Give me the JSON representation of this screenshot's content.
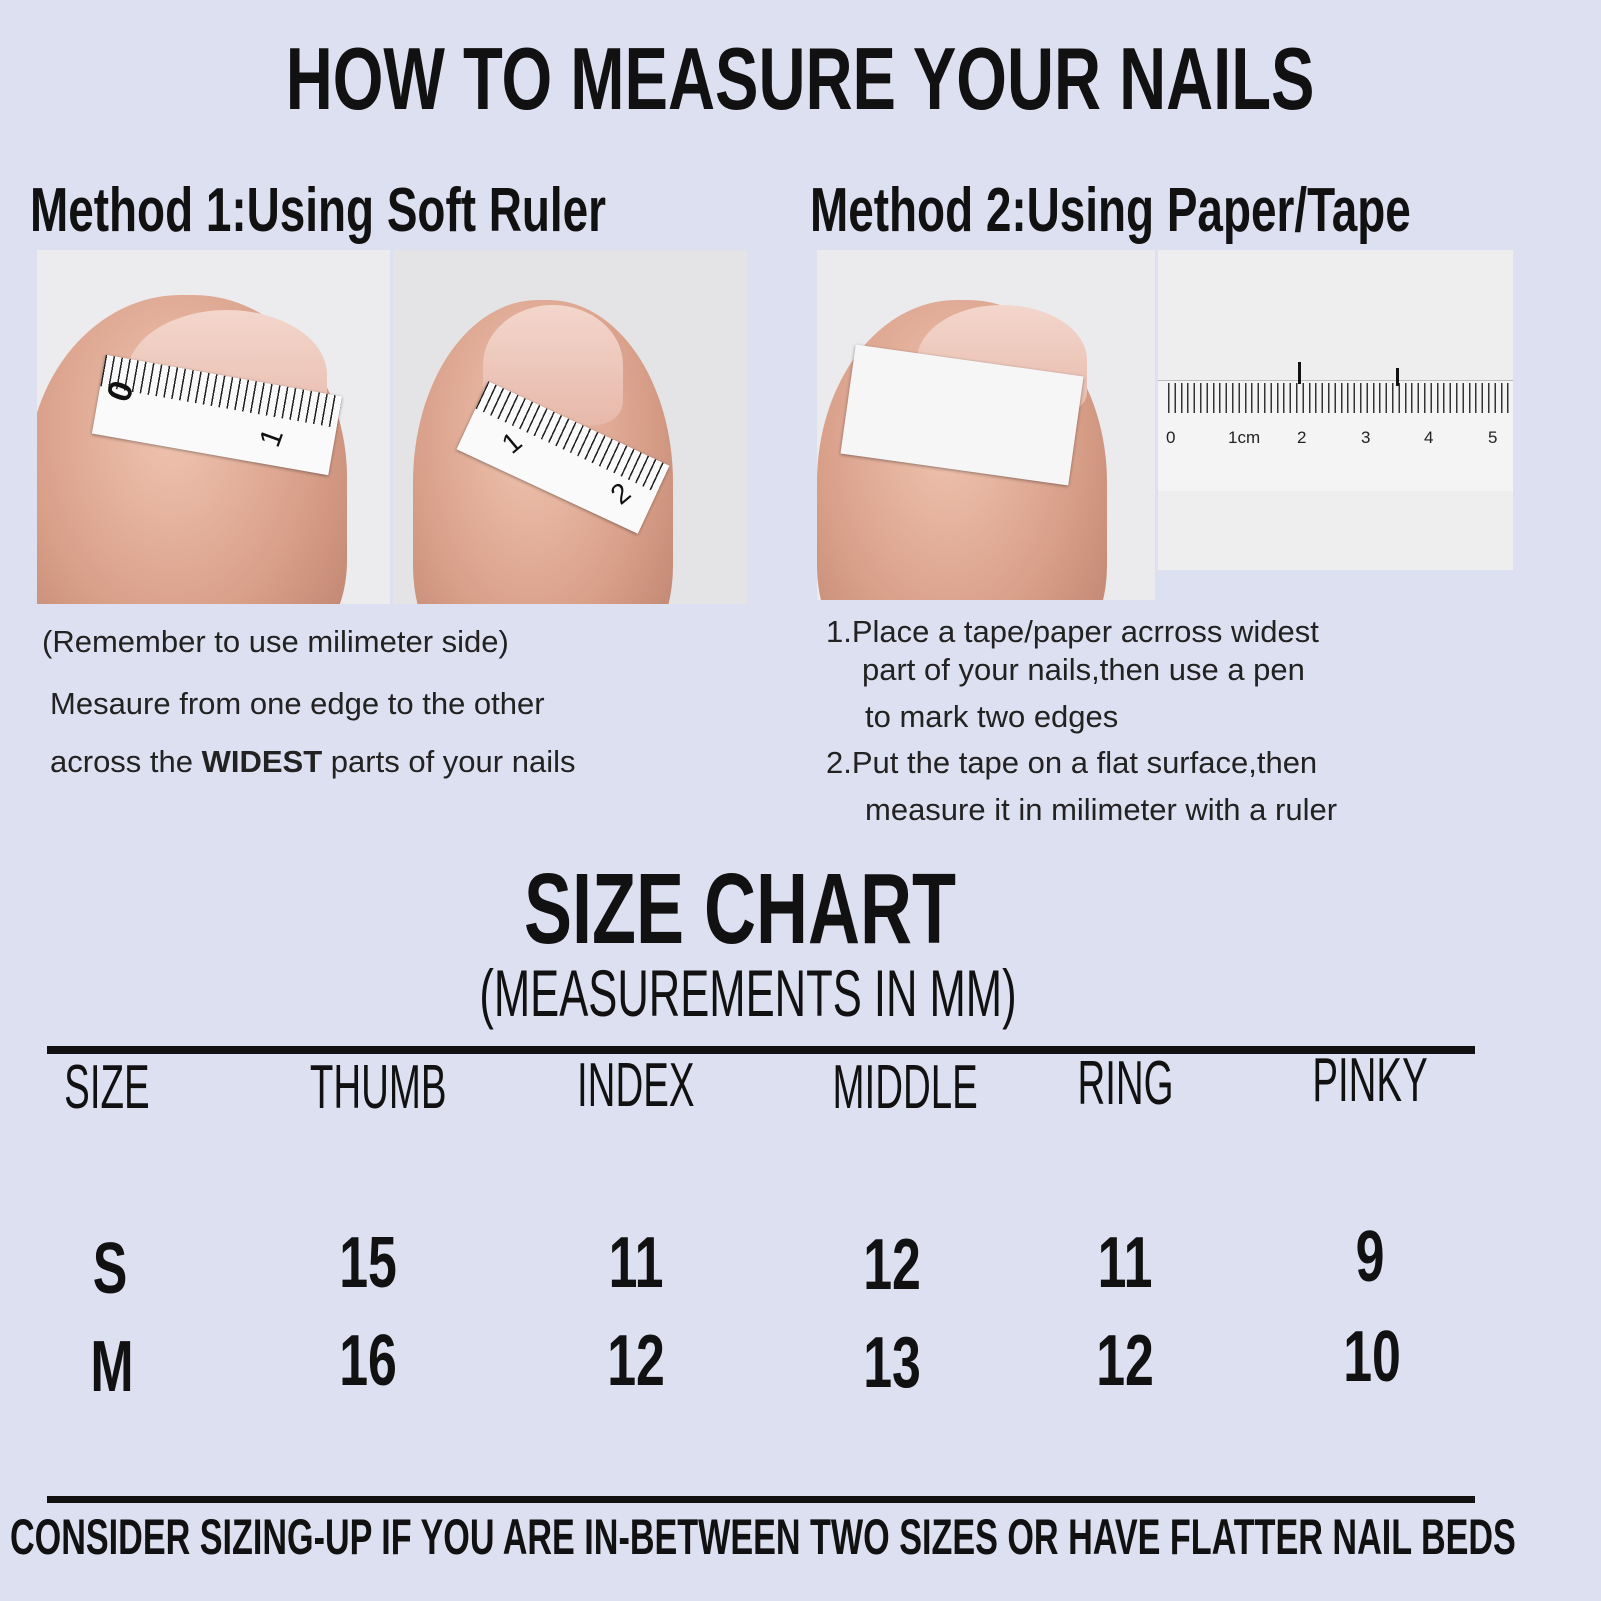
{
  "title": "HOW TO MEASURE YOUR NAILS",
  "method1": {
    "heading": "Method 1:Using Soft Ruler",
    "tape_labels": [
      "0",
      "1",
      "1",
      "2"
    ],
    "note": "(Remember to use milimeter side)",
    "line1": "Mesaure from one edge to the other",
    "line2_pre": "across the ",
    "line2_bold": "WIDEST",
    "line2_post": " parts of your nails"
  },
  "method2": {
    "heading": "Method 2:Using Paper/Tape",
    "ruler_labels": [
      "0",
      "1cm",
      "2",
      "3",
      "4",
      "5"
    ],
    "step1_a": "1.Place a tape/paper acrross widest",
    "step1_b": "part of your nails,then use a pen",
    "step1_c": "to mark two edges",
    "step2_a": "2.Put the tape on a flat surface,then",
    "step2_b": "measure it in milimeter with a ruler"
  },
  "size_chart": {
    "title": "SIZE CHART",
    "subtitle": "(MEASUREMENTS IN MM)",
    "columns": [
      "SIZE",
      "THUMB",
      "INDEX",
      "MIDDLE",
      "RING",
      "PINKY"
    ],
    "rows": [
      [
        "S",
        "15",
        "11",
        "12",
        "11",
        "9"
      ],
      [
        "M",
        "16",
        "12",
        "13",
        "12",
        "10"
      ]
    ]
  },
  "footer": "CONSIDER SIZING-UP IF YOU ARE IN-BETWEEN TWO SIZES OR HAVE FLATTER NAIL BEDS"
}
